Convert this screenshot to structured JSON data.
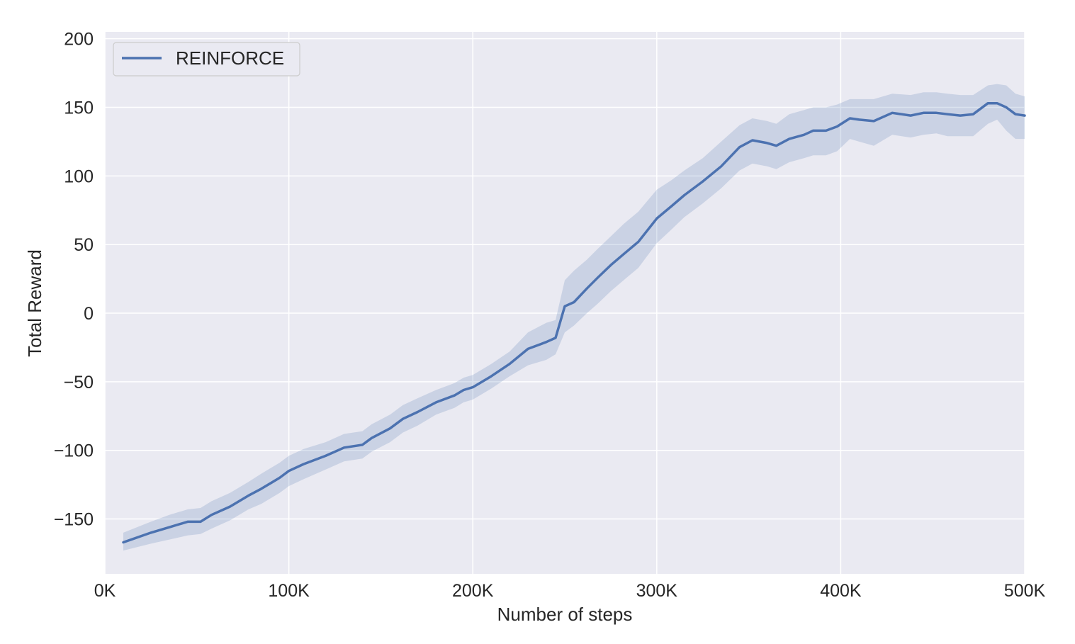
{
  "chart_data": {
    "type": "line",
    "title": "",
    "xlabel": "Number of steps",
    "ylabel": "Total Reward",
    "xlim": [
      0,
      500000
    ],
    "ylim": [
      -190,
      205
    ],
    "x_ticks": [
      0,
      100000,
      200000,
      300000,
      400000,
      500000
    ],
    "x_tick_labels": [
      "0K",
      "100K",
      "200K",
      "300K",
      "400K",
      "500K"
    ],
    "y_ticks": [
      -150,
      -100,
      -50,
      0,
      50,
      100,
      150,
      200
    ],
    "y_tick_labels": [
      "−150",
      "−100",
      "−50",
      "0",
      "50",
      "100",
      "150",
      "200"
    ],
    "grid": true,
    "background": "#eaeaf2",
    "legend_position": "top-left",
    "series": [
      {
        "name": "REINFORCE",
        "color": "#4c72b0",
        "band_color": "#4c72b0",
        "x": [
          10000,
          25000,
          35000,
          45000,
          52000,
          58000,
          68000,
          78000,
          85000,
          95000,
          100000,
          108000,
          120000,
          130000,
          140000,
          145000,
          155000,
          162000,
          170000,
          180000,
          190000,
          195000,
          200000,
          210000,
          220000,
          230000,
          240000,
          245000,
          250000,
          255000,
          262000,
          268000,
          275000,
          282000,
          290000,
          300000,
          308000,
          315000,
          325000,
          335000,
          345000,
          352000,
          360000,
          365000,
          372000,
          380000,
          385000,
          392000,
          398000,
          405000,
          410000,
          418000,
          428000,
          438000,
          445000,
          452000,
          458000,
          465000,
          472000,
          480000,
          485000,
          490000,
          495000,
          500000
        ],
        "y": [
          -167,
          -160,
          -156,
          -152,
          -152,
          -147,
          -141,
          -133,
          -128,
          -120,
          -115,
          -110,
          -104,
          -98,
          -96,
          -91,
          -84,
          -77,
          -72,
          -65,
          -60,
          -56,
          -54,
          -46,
          -37,
          -26,
          -21,
          -18,
          5,
          8,
          18,
          26,
          35,
          43,
          52,
          69,
          78,
          86,
          96,
          107,
          121,
          126,
          124,
          122,
          127,
          130,
          133,
          133,
          136,
          142,
          141,
          140,
          146,
          144,
          146,
          146,
          145,
          144,
          145,
          153,
          153,
          150,
          145,
          144
        ],
        "lower": [
          -173,
          -168,
          -165,
          -162,
          -161,
          -157,
          -151,
          -143,
          -139,
          -131,
          -126,
          -121,
          -114,
          -108,
          -106,
          -101,
          -94,
          -87,
          -82,
          -74,
          -69,
          -65,
          -63,
          -55,
          -46,
          -38,
          -34,
          -30,
          -14,
          -9,
          0,
          7,
          16,
          24,
          33,
          51,
          61,
          70,
          80,
          91,
          104,
          109,
          107,
          105,
          110,
          113,
          115,
          115,
          118,
          127,
          125,
          122,
          130,
          128,
          130,
          131,
          129,
          129,
          129,
          138,
          141,
          133,
          127,
          127
        ],
        "upper": [
          -160,
          -152,
          -147,
          -143,
          -142,
          -137,
          -131,
          -123,
          -117,
          -109,
          -104,
          -99,
          -94,
          -88,
          -86,
          -81,
          -74,
          -67,
          -62,
          -56,
          -51,
          -47,
          -45,
          -37,
          -28,
          -14,
          -7,
          -5,
          24,
          31,
          39,
          47,
          56,
          65,
          74,
          90,
          97,
          104,
          113,
          125,
          137,
          142,
          140,
          138,
          145,
          148,
          150,
          150,
          152,
          156,
          156,
          156,
          160,
          159,
          161,
          161,
          160,
          159,
          159,
          166,
          167,
          166,
          160,
          158
        ]
      }
    ]
  }
}
